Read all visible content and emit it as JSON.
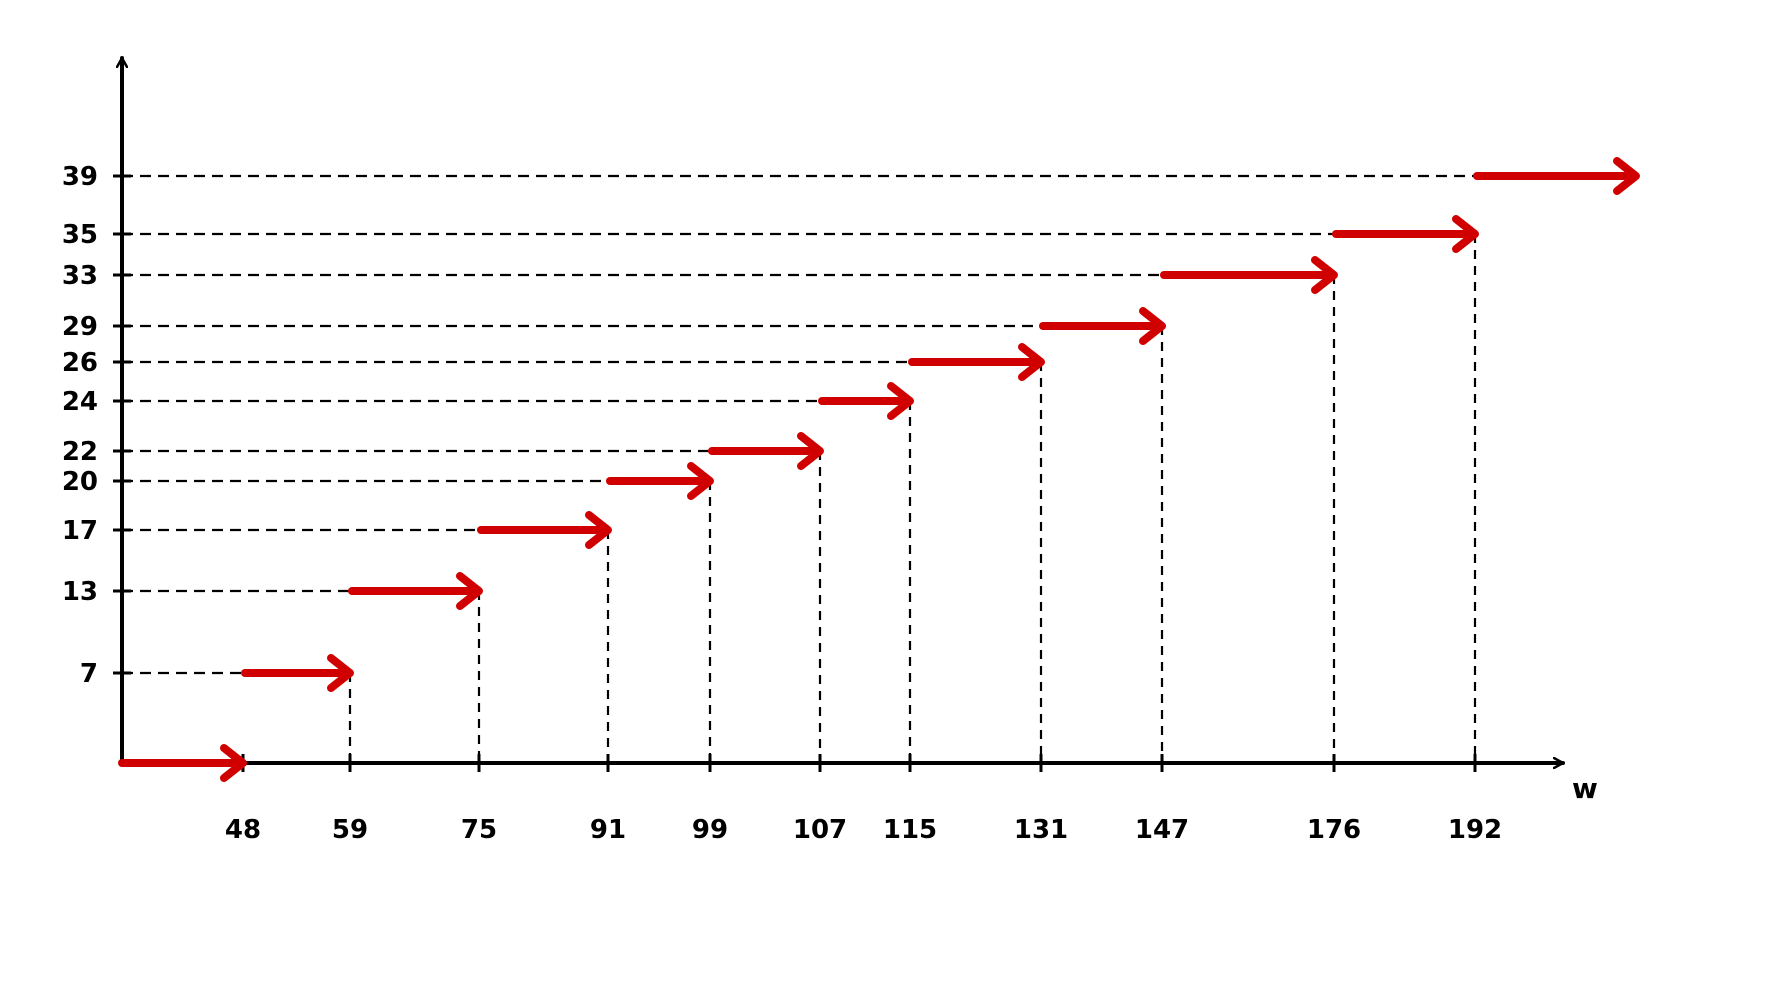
{
  "chart_data": {
    "type": "line",
    "step_style": "right-pointing arrows",
    "title": "",
    "xlabel": "w",
    "ylabel": "",
    "x_ticks": [
      48,
      59,
      75,
      91,
      99,
      107,
      115,
      131,
      147,
      176,
      192
    ],
    "y_ticks": [
      7,
      13,
      17,
      20,
      22,
      24,
      26,
      29,
      33,
      35,
      39
    ],
    "x_tick_labels": [
      "48",
      "59",
      "75",
      "91",
      "99",
      "107",
      "115",
      "131",
      "147",
      "176",
      "192"
    ],
    "y_tick_labels": [
      "7",
      "13",
      "17",
      "20",
      "22",
      "24",
      "26",
      "29",
      "33",
      "35",
      "39"
    ],
    "series": [
      {
        "segments": [
          {
            "x_start": 36,
            "x_end": 48,
            "y": 0
          },
          {
            "x_start": 48,
            "x_end": 59,
            "y": 7
          },
          {
            "x_start": 59,
            "x_end": 75,
            "y": 13
          },
          {
            "x_start": 75,
            "x_end": 91,
            "y": 17
          },
          {
            "x_start": 91,
            "x_end": 99,
            "y": 20
          },
          {
            "x_start": 99,
            "x_end": 107,
            "y": 22
          },
          {
            "x_start": 107,
            "x_end": 115,
            "y": 24
          },
          {
            "x_start": 115,
            "x_end": 131,
            "y": 26
          },
          {
            "x_start": 131,
            "x_end": 147,
            "y": 29
          },
          {
            "x_start": 147,
            "x_end": 176,
            "y": 33
          },
          {
            "x_start": 176,
            "x_end": 192,
            "y": 35
          },
          {
            "x_start": 192,
            "x_end": 212,
            "y": 39
          }
        ]
      }
    ],
    "grid": false,
    "colors": {
      "arrows": "#d10000",
      "axes": "#000000",
      "guides": "#000000"
    }
  }
}
